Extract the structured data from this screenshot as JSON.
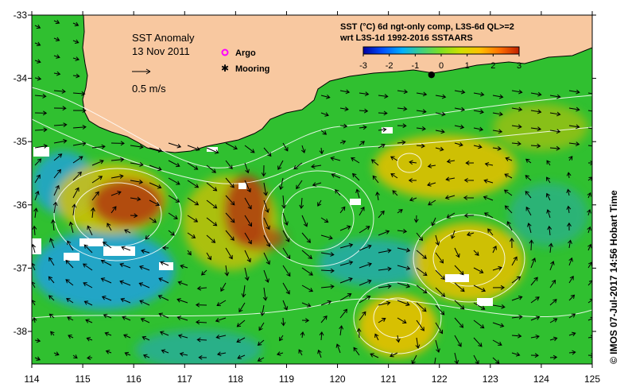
{
  "map": {
    "title_line1": "SST Anomaly",
    "title_line2": "13 Nov 2011",
    "vector_scale_label": "0.5 m/s",
    "legend": [
      {
        "label": "Argo",
        "marker": "circle",
        "color": "#ff00ff"
      },
      {
        "label": "Mooring",
        "marker": "star",
        "color": "#000000"
      }
    ],
    "product_line1": "SST (°C) 6d ngt-only comp, L3S-6d QL>=2",
    "product_line2": "wrt L3S-1d 1992-2016 SSTAARS",
    "colorbar": {
      "ticks": [
        "-3",
        "-2",
        "-1",
        "0",
        "1",
        "2",
        "3"
      ],
      "colors": [
        "#0000a0",
        "#0050ff",
        "#00b0ff",
        "#40d080",
        "#80e020",
        "#d0e000",
        "#ffc000",
        "#ff7000",
        "#c02000"
      ]
    },
    "credit": "© IMOS 07-Jul-2017 14:56 Hobart Time",
    "x_ticks": [
      "114",
      "115",
      "116",
      "117",
      "118",
      "119",
      "120",
      "121",
      "122",
      "123",
      "124",
      "125"
    ],
    "y_ticks": [
      "-33",
      "-34",
      "-35",
      "-36",
      "-37",
      "-38"
    ],
    "colors": {
      "land": "#f8c8a0",
      "ocean_green": "#30c030",
      "ocean_cool": "#20a0e0",
      "ocean_warm": "#e0c000",
      "anomaly_hot": "#b04010",
      "missing": "#ffffff"
    }
  }
}
